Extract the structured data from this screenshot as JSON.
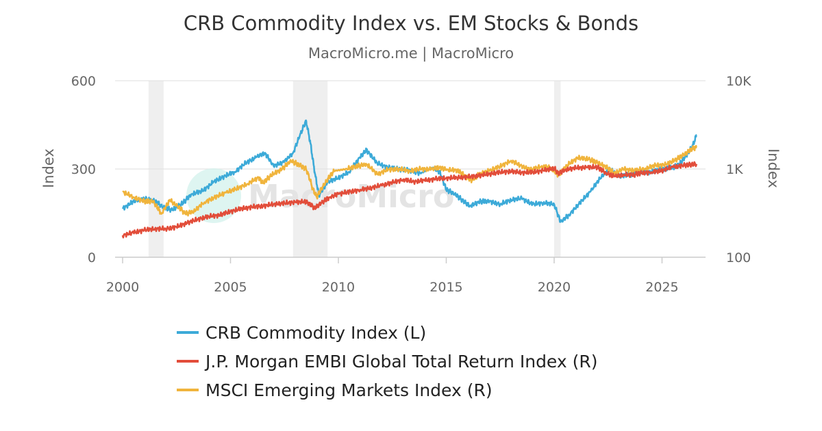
{
  "chart_data": {
    "type": "line",
    "title": "CRB Commodity Index vs. EM Stocks & Bonds",
    "subtitle": "MacroMicro.me | MacroMicro",
    "watermark": "MacroMicro",
    "x_ticks": [
      "2000",
      "2005",
      "2010",
      "2015",
      "2020",
      "2025"
    ],
    "x_range": [
      2000,
      2026.7
    ],
    "y_left": {
      "label": "Index",
      "range": [
        0,
        600
      ],
      "ticks": [
        "0",
        "300",
        "600"
      ],
      "tick_values": [
        0,
        300,
        600
      ]
    },
    "y_right": {
      "label": "Index",
      "scale": "log",
      "range": [
        100,
        10000
      ],
      "ticks": [
        "100",
        "1K",
        "10K"
      ],
      "tick_values": [
        100,
        1000,
        10000
      ]
    },
    "grid": true,
    "legend_position": "bottom",
    "recession_bands": [
      [
        2001.2,
        2001.9
      ],
      [
        2007.9,
        2009.5
      ],
      [
        2020.0,
        2020.3
      ]
    ],
    "series": [
      {
        "name": "CRB Commodity Index (L)",
        "axis": "left",
        "color": "#3caad8",
        "points": [
          [
            2000.0,
            165
          ],
          [
            2000.5,
            190
          ],
          [
            2001.0,
            200
          ],
          [
            2001.5,
            190
          ],
          [
            2001.9,
            170
          ],
          [
            2002.3,
            160
          ],
          [
            2002.8,
            185
          ],
          [
            2003.2,
            215
          ],
          [
            2003.7,
            225
          ],
          [
            2004.2,
            255
          ],
          [
            2004.7,
            275
          ],
          [
            2005.2,
            290
          ],
          [
            2005.7,
            320
          ],
          [
            2006.2,
            340
          ],
          [
            2006.6,
            355
          ],
          [
            2007.0,
            310
          ],
          [
            2007.5,
            325
          ],
          [
            2007.9,
            355
          ],
          [
            2008.2,
            410
          ],
          [
            2008.5,
            465
          ],
          [
            2008.7,
            390
          ],
          [
            2008.9,
            290
          ],
          [
            2009.1,
            210
          ],
          [
            2009.5,
            255
          ],
          [
            2010.0,
            270
          ],
          [
            2010.5,
            290
          ],
          [
            2011.0,
            340
          ],
          [
            2011.3,
            365
          ],
          [
            2011.8,
            320
          ],
          [
            2012.3,
            305
          ],
          [
            2012.8,
            300
          ],
          [
            2013.3,
            295
          ],
          [
            2013.8,
            285
          ],
          [
            2014.4,
            305
          ],
          [
            2014.7,
            290
          ],
          [
            2015.0,
            230
          ],
          [
            2015.4,
            215
          ],
          [
            2015.8,
            190
          ],
          [
            2016.1,
            175
          ],
          [
            2016.6,
            190
          ],
          [
            2017.0,
            190
          ],
          [
            2017.5,
            180
          ],
          [
            2018.0,
            195
          ],
          [
            2018.5,
            200
          ],
          [
            2019.0,
            180
          ],
          [
            2019.5,
            185
          ],
          [
            2020.0,
            180
          ],
          [
            2020.3,
            120
          ],
          [
            2020.7,
            145
          ],
          [
            2021.2,
            185
          ],
          [
            2021.7,
            225
          ],
          [
            2022.2,
            275
          ],
          [
            2022.6,
            300
          ],
          [
            2023.0,
            275
          ],
          [
            2023.5,
            280
          ],
          [
            2024.0,
            290
          ],
          [
            2024.5,
            290
          ],
          [
            2025.0,
            300
          ],
          [
            2025.5,
            305
          ],
          [
            2025.8,
            315
          ],
          [
            2026.1,
            345
          ],
          [
            2026.4,
            375
          ],
          [
            2026.6,
            415
          ]
        ]
      },
      {
        "name": "J.P. Morgan EMBI Global Total Return Index (R)",
        "axis": "right",
        "color": "#e24d3a",
        "points": [
          [
            2000.0,
            177
          ],
          [
            2000.5,
            190
          ],
          [
            2001.0,
            203
          ],
          [
            2001.5,
            210
          ],
          [
            2002.0,
            210
          ],
          [
            2002.5,
            220
          ],
          [
            2003.0,
            245
          ],
          [
            2003.5,
            270
          ],
          [
            2004.0,
            290
          ],
          [
            2004.5,
            300
          ],
          [
            2005.0,
            330
          ],
          [
            2005.5,
            355
          ],
          [
            2006.0,
            370
          ],
          [
            2006.5,
            380
          ],
          [
            2007.0,
            400
          ],
          [
            2007.5,
            410
          ],
          [
            2008.0,
            420
          ],
          [
            2008.5,
            425
          ],
          [
            2008.8,
            380
          ],
          [
            2008.9,
            360
          ],
          [
            2009.2,
            410
          ],
          [
            2009.6,
            480
          ],
          [
            2010.0,
            520
          ],
          [
            2010.5,
            550
          ],
          [
            2011.0,
            580
          ],
          [
            2011.5,
            610
          ],
          [
            2012.0,
            650
          ],
          [
            2012.5,
            700
          ],
          [
            2013.0,
            760
          ],
          [
            2013.5,
            720
          ],
          [
            2014.0,
            740
          ],
          [
            2014.5,
            770
          ],
          [
            2015.0,
            790
          ],
          [
            2015.5,
            800
          ],
          [
            2016.0,
            810
          ],
          [
            2016.5,
            840
          ],
          [
            2017.0,
            880
          ],
          [
            2017.5,
            920
          ],
          [
            2018.0,
            940
          ],
          [
            2018.5,
            910
          ],
          [
            2019.0,
            920
          ],
          [
            2019.5,
            960
          ],
          [
            2020.0,
            1020
          ],
          [
            2020.2,
            880
          ],
          [
            2020.5,
            980
          ],
          [
            2021.0,
            1030
          ],
          [
            2021.5,
            1040
          ],
          [
            2022.0,
            1050
          ],
          [
            2022.4,
            900
          ],
          [
            2022.8,
            820
          ],
          [
            2023.2,
            860
          ],
          [
            2023.7,
            860
          ],
          [
            2024.0,
            900
          ],
          [
            2024.5,
            920
          ],
          [
            2025.0,
            960
          ],
          [
            2025.5,
            1050
          ],
          [
            2026.0,
            1100
          ],
          [
            2026.6,
            1140
          ]
        ]
      },
      {
        "name": "MSCI Emerging Markets Index (R)",
        "axis": "right",
        "color": "#f0b43c",
        "points": [
          [
            2000.0,
            550
          ],
          [
            2000.5,
            480
          ],
          [
            2001.0,
            430
          ],
          [
            2001.4,
            430
          ],
          [
            2001.8,
            310
          ],
          [
            2002.2,
            440
          ],
          [
            2002.6,
            370
          ],
          [
            2002.9,
            310
          ],
          [
            2003.3,
            330
          ],
          [
            2003.8,
            420
          ],
          [
            2004.3,
            480
          ],
          [
            2004.8,
            540
          ],
          [
            2005.3,
            600
          ],
          [
            2005.8,
            680
          ],
          [
            2006.3,
            800
          ],
          [
            2006.5,
            690
          ],
          [
            2006.9,
            850
          ],
          [
            2007.4,
            1000
          ],
          [
            2007.8,
            1240
          ],
          [
            2008.2,
            1100
          ],
          [
            2008.5,
            1000
          ],
          [
            2008.8,
            600
          ],
          [
            2009.0,
            480
          ],
          [
            2009.4,
            700
          ],
          [
            2009.8,
            950
          ],
          [
            2010.4,
            1000
          ],
          [
            2010.9,
            1080
          ],
          [
            2011.3,
            1130
          ],
          [
            2011.8,
            870
          ],
          [
            2012.3,
            980
          ],
          [
            2012.8,
            1000
          ],
          [
            2013.3,
            950
          ],
          [
            2013.8,
            1000
          ],
          [
            2014.3,
            990
          ],
          [
            2014.7,
            1050
          ],
          [
            2015.0,
            970
          ],
          [
            2015.5,
            970
          ],
          [
            2015.9,
            820
          ],
          [
            2016.2,
            740
          ],
          [
            2016.6,
            900
          ],
          [
            2017.0,
            950
          ],
          [
            2017.5,
            1070
          ],
          [
            2018.0,
            1240
          ],
          [
            2018.5,
            1080
          ],
          [
            2018.9,
            970
          ],
          [
            2019.4,
            1070
          ],
          [
            2019.8,
            1030
          ],
          [
            2020.2,
            850
          ],
          [
            2020.6,
            1100
          ],
          [
            2021.1,
            1340
          ],
          [
            2021.6,
            1290
          ],
          [
            2022.0,
            1180
          ],
          [
            2022.5,
            1020
          ],
          [
            2022.8,
            880
          ],
          [
            2023.2,
            1000
          ],
          [
            2023.7,
            960
          ],
          [
            2024.2,
            1000
          ],
          [
            2024.7,
            1100
          ],
          [
            2025.2,
            1120
          ],
          [
            2025.7,
            1300
          ],
          [
            2026.1,
            1500
          ],
          [
            2026.4,
            1700
          ],
          [
            2026.6,
            1750
          ]
        ]
      }
    ]
  }
}
